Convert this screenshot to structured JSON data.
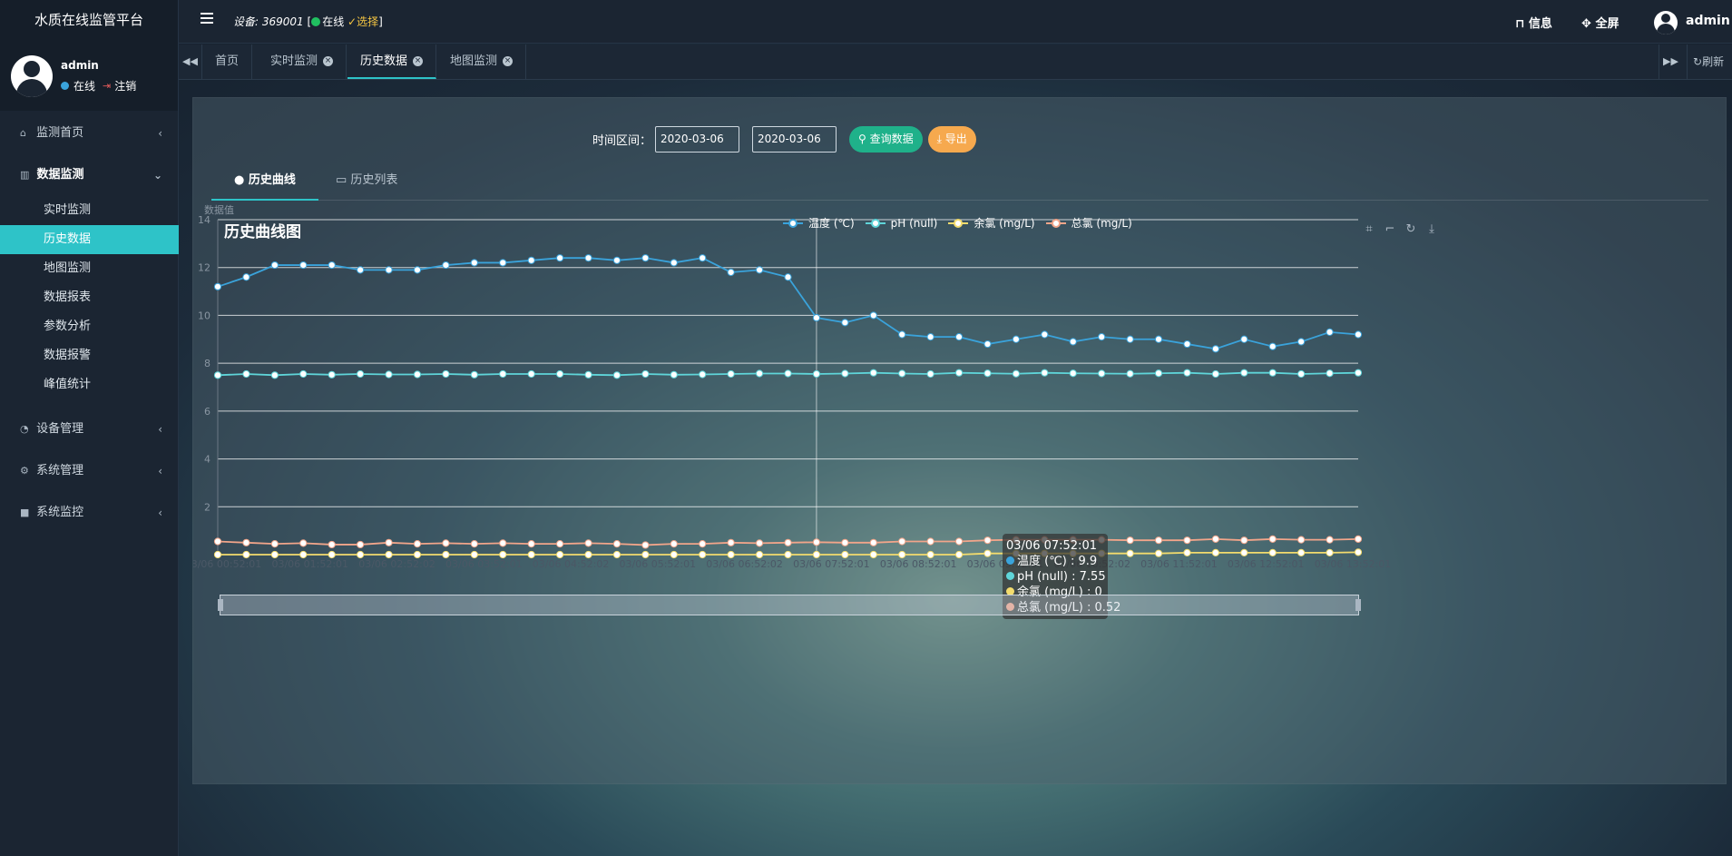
{
  "app": {
    "title": "水质在线监管平台"
  },
  "user": {
    "name": "admin",
    "status": "在线",
    "logout": "注销"
  },
  "sidebar": {
    "groups": [
      {
        "icon": "home-icon",
        "label": "监测首页"
      },
      {
        "icon": "bar-chart-icon",
        "label": "数据监测",
        "items": [
          "实时监测",
          "历史数据",
          "地图监测",
          "数据报表",
          "参数分析",
          "数据报警",
          "峰值统计"
        ]
      },
      {
        "icon": "dashboard-icon",
        "label": "设备管理"
      },
      {
        "icon": "gear-icon",
        "label": "系统管理"
      },
      {
        "icon": "video-camera-icon",
        "label": "系统监控"
      }
    ]
  },
  "topbar": {
    "device_label": "设备: 369001",
    "device_status": "在线",
    "select_label": "选择",
    "info": "信息",
    "fullscreen": "全屏",
    "user": "admin"
  },
  "tabs": {
    "items": [
      "首页",
      "实时监测",
      "历史数据",
      "地图监测"
    ],
    "refresh": "刷新"
  },
  "filter": {
    "label": "时间区间：",
    "start": "2020-03-06",
    "end": "2020-03-06",
    "query": "查询数据",
    "export": "导出"
  },
  "subtabs": {
    "curve": "历史曲线",
    "list": "历史列表"
  },
  "tooltip": {
    "time": "03/06 07:52:01",
    "rows": [
      "温度 (℃) : 9.9",
      "pH (null) : 7.55",
      "余氯 (mg/L) : 0",
      "总氯 (mg/L) : 0.52"
    ]
  },
  "colors": {
    "temp": "#3aa3db",
    "ph": "#5fd5d9",
    "chlorine": "#f3dc6d",
    "total": "#f2a58a",
    "accent": "#2ec3c8"
  },
  "chart_data": {
    "type": "line",
    "title": "历史曲线图",
    "ylabel": "数据值",
    "ylim": [
      0,
      14
    ],
    "yticks": [
      2,
      4,
      6,
      8,
      10,
      12,
      14
    ],
    "xlabels": [
      "03/06 00:52:01",
      "03/06 01:52:01",
      "03/06 02:52:02",
      "03/06 03:52:01",
      "03/06 04:52:02",
      "03/06 05:52:01",
      "03/06 06:52:02",
      "03/06 07:52:01",
      "03/06 08:52:01",
      "03/06 09:52:01",
      "03/06 10:52:02",
      "03/06 11:52:01",
      "03/06 12:52:01",
      "03/06 13:52:01"
    ],
    "series": [
      {
        "name": "温度 (℃)",
        "values": [
          11.2,
          11.6,
          12.1,
          12.1,
          12.1,
          11.9,
          11.9,
          11.9,
          12.1,
          12.2,
          12.2,
          12.3,
          12.4,
          12.4,
          12.3,
          12.4,
          12.2,
          12.4,
          11.8,
          11.9,
          11.6,
          9.9,
          9.7,
          10.0,
          9.2,
          9.1,
          9.1,
          8.8,
          9.0,
          9.2,
          8.9,
          9.1,
          9.0,
          9.0,
          8.8,
          8.6,
          9.0,
          8.7,
          8.9,
          9.3,
          9.2
        ]
      },
      {
        "name": "pH (null)",
        "values": [
          7.5,
          7.55,
          7.5,
          7.55,
          7.52,
          7.55,
          7.53,
          7.53,
          7.55,
          7.52,
          7.55,
          7.55,
          7.55,
          7.52,
          7.5,
          7.55,
          7.52,
          7.53,
          7.55,
          7.57,
          7.57,
          7.55,
          7.57,
          7.6,
          7.57,
          7.55,
          7.6,
          7.58,
          7.56,
          7.6,
          7.58,
          7.57,
          7.56,
          7.58,
          7.6,
          7.55,
          7.6,
          7.6,
          7.55,
          7.58,
          7.6
        ]
      },
      {
        "name": "余氯 (mg/L)",
        "values": [
          0,
          0,
          0,
          0,
          0,
          0,
          0,
          0,
          0,
          0,
          0,
          0,
          0,
          0,
          0,
          0,
          0,
          0,
          0,
          0,
          0,
          0,
          0,
          0,
          0,
          0,
          0,
          0.05,
          0.05,
          0.05,
          0.05,
          0.05,
          0.05,
          0.05,
          0.08,
          0.08,
          0.08,
          0.08,
          0.08,
          0.08,
          0.1
        ]
      },
      {
        "name": "总氯 (mg/L)",
        "values": [
          0.55,
          0.5,
          0.45,
          0.48,
          0.42,
          0.42,
          0.5,
          0.45,
          0.48,
          0.45,
          0.48,
          0.45,
          0.45,
          0.48,
          0.45,
          0.4,
          0.45,
          0.45,
          0.5,
          0.48,
          0.5,
          0.52,
          0.5,
          0.5,
          0.55,
          0.55,
          0.55,
          0.6,
          0.62,
          0.62,
          0.62,
          0.62,
          0.6,
          0.6,
          0.6,
          0.65,
          0.6,
          0.65,
          0.62,
          0.62,
          0.65
        ]
      }
    ],
    "legend": "top-center",
    "grid": true
  }
}
